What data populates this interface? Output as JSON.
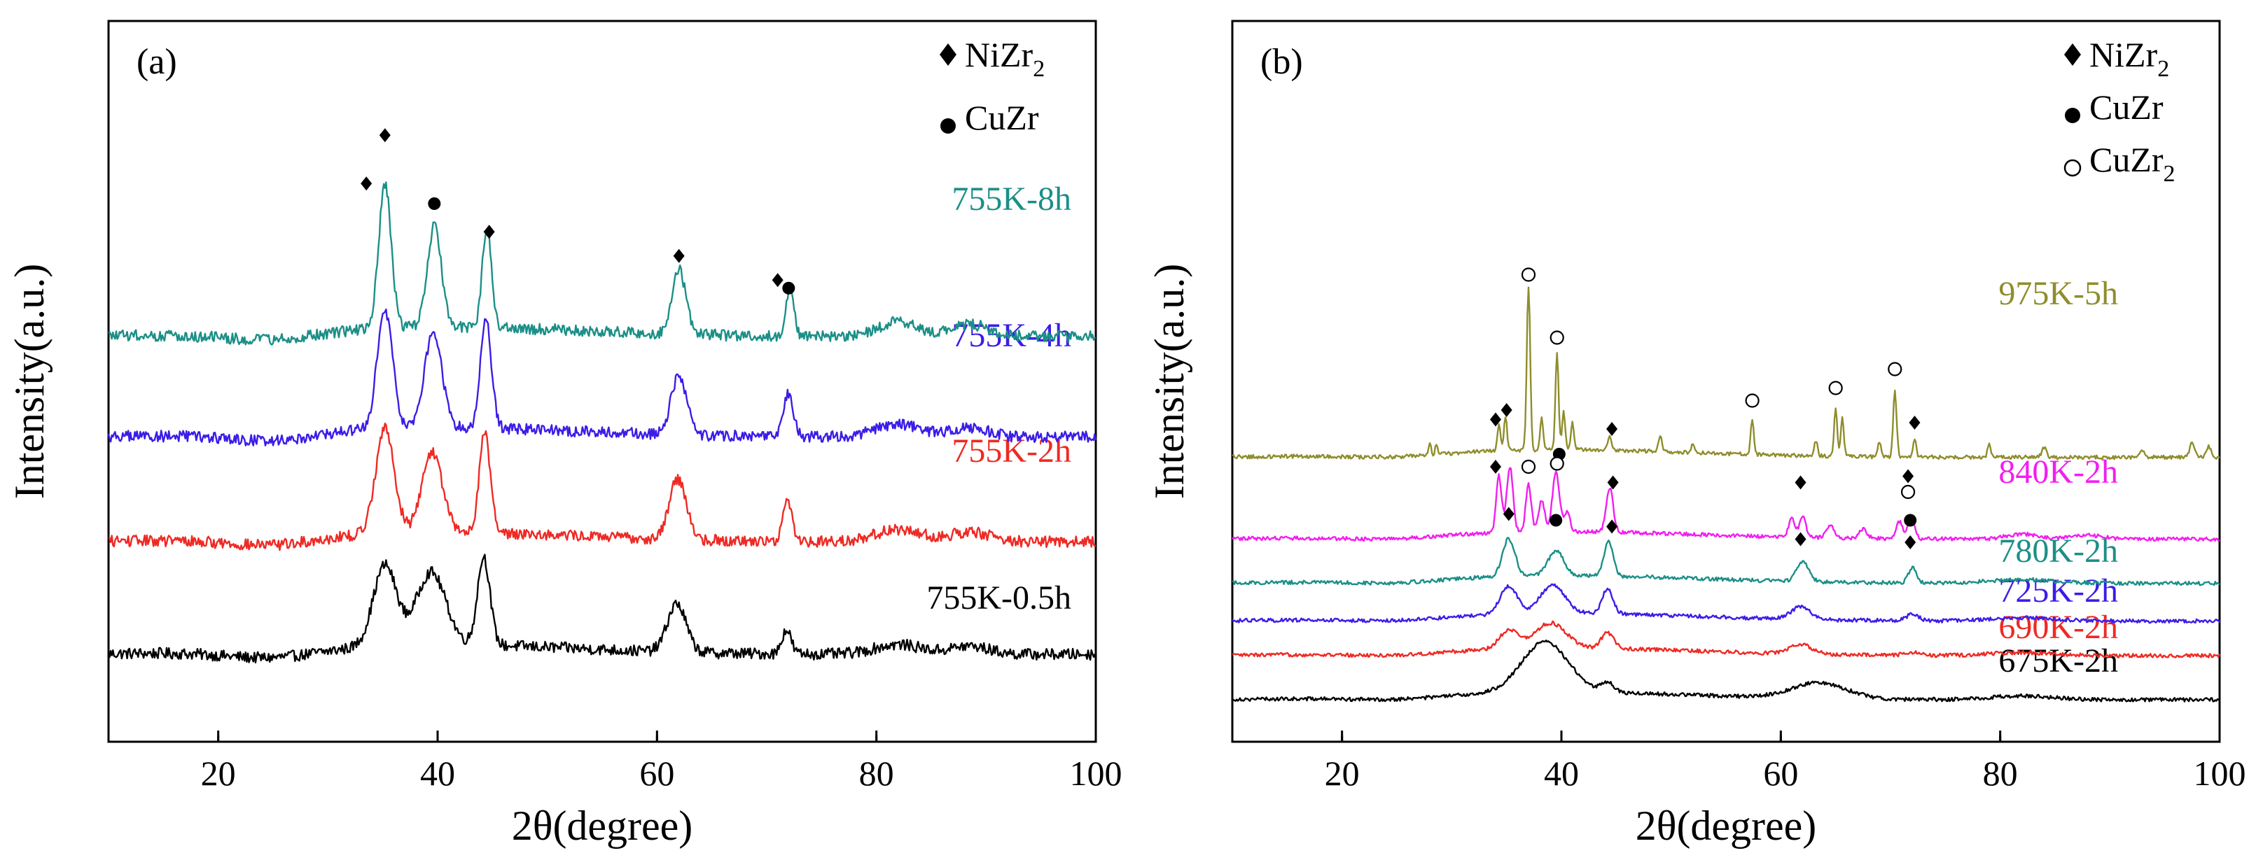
{
  "chart_data": [
    {
      "type": "line",
      "panel_label": "(a)",
      "xlabel": "2θ(degree)",
      "ylabel": "Intensity(a.u.)",
      "xlim": [
        10,
        100
      ],
      "xticks": [
        20,
        40,
        60,
        80,
        100
      ],
      "yticks": "none",
      "legend": {
        "placement": "top-right",
        "entries": [
          {
            "symbol": "filled-diamond",
            "label": "NiZr",
            "sub": "2"
          },
          {
            "symbol": "filled-circle",
            "label": "CuZr",
            "sub": ""
          }
        ]
      },
      "series": [
        {
          "name": "755K-0.5h",
          "color": "#000000",
          "offset": 0.0,
          "peaks": [
            [
              35.2,
              1.0,
              1.5
            ],
            [
              39.4,
              0.9,
              1.9
            ],
            [
              44.2,
              1.1,
              0.8
            ],
            [
              61.8,
              0.6,
              1.2
            ],
            [
              71.8,
              0.3,
              0.6
            ],
            [
              82,
              0.12,
              3
            ],
            [
              88.5,
              0.1,
              2.5
            ]
          ]
        },
        {
          "name": "755K-2h",
          "color": "#ee2a24",
          "offset": 1.4,
          "peaks": [
            [
              35.2,
              1.3,
              1.2
            ],
            [
              39.5,
              1.0,
              1.3
            ],
            [
              44.3,
              1.25,
              0.7
            ],
            [
              61.9,
              0.75,
              1.1
            ],
            [
              71.9,
              0.5,
              0.6
            ],
            [
              82,
              0.15,
              3
            ],
            [
              88.5,
              0.12,
              2.5
            ]
          ]
        },
        {
          "name": "755K-4h",
          "color": "#3b1de8",
          "offset": 2.7,
          "peaks": [
            [
              35.2,
              1.45,
              1.0
            ],
            [
              39.6,
              1.2,
              1.1
            ],
            [
              44.4,
              1.35,
              0.7
            ],
            [
              62.0,
              0.75,
              1.0
            ],
            [
              72.0,
              0.55,
              0.6
            ],
            [
              82,
              0.15,
              3
            ],
            [
              88.5,
              0.12,
              2.5
            ]
          ]
        },
        {
          "name": "755K-8h",
          "color": "#1b8f87",
          "offset": 3.95,
          "peaks": [
            [
              35.2,
              1.8,
              0.8
            ],
            [
              39.7,
              1.25,
              0.9
            ],
            [
              44.5,
              1.25,
              0.6
            ],
            [
              62.0,
              0.8,
              0.9
            ],
            [
              72.1,
              0.6,
              0.5
            ],
            [
              82,
              0.18,
              2.5
            ],
            [
              88.5,
              0.15,
              2.5
            ]
          ]
        }
      ],
      "markers": [
        {
          "symbol": "diamond",
          "x": 33.5,
          "y": 5.85
        },
        {
          "symbol": "diamond",
          "x": 35.2,
          "y": 6.45
        },
        {
          "symbol": "circle",
          "x": 39.7,
          "y": 5.6
        },
        {
          "symbol": "diamond",
          "x": 44.7,
          "y": 5.25
        },
        {
          "symbol": "diamond",
          "x": 62.0,
          "y": 4.95
        },
        {
          "symbol": "diamond",
          "x": 71.0,
          "y": 4.65
        },
        {
          "symbol": "circle",
          "x": 72.0,
          "y": 4.55
        }
      ]
    },
    {
      "type": "line",
      "panel_label": "(b)",
      "xlabel": "2θ(degree)",
      "ylabel": "Intensity(a.u.)",
      "xlim": [
        10,
        100
      ],
      "xticks": [
        20,
        40,
        60,
        80,
        100
      ],
      "yticks": "none",
      "legend": {
        "placement": "top-right",
        "entries": [
          {
            "symbol": "filled-diamond",
            "label": "NiZr",
            "sub": "2"
          },
          {
            "symbol": "filled-circle",
            "label": "CuZr",
            "sub": ""
          },
          {
            "symbol": "open-circle",
            "label": "CuZr",
            "sub": "2"
          }
        ]
      },
      "series": [
        {
          "name": "675K-2h",
          "color": "#000000",
          "offset": 0.0,
          "peaks": [
            [
              38.5,
              0.8,
              3.0
            ],
            [
              44.2,
              0.15,
              0.8
            ],
            [
              63.5,
              0.25,
              3.5
            ],
            [
              82,
              0.06,
              4
            ]
          ]
        },
        {
          "name": "690K-2h",
          "color": "#ee2a24",
          "offset": 0.7,
          "peaks": [
            [
              35.2,
              0.3,
              1.2
            ],
            [
              39.0,
              0.4,
              2.0
            ],
            [
              44.2,
              0.25,
              0.8
            ],
            [
              61.8,
              0.15,
              1.5
            ],
            [
              72,
              0.05,
              1
            ],
            [
              82,
              0.05,
              4
            ]
          ]
        },
        {
          "name": "725K-2h",
          "color": "#3b1de8",
          "offset": 1.25,
          "peaks": [
            [
              35.2,
              0.45,
              1.1
            ],
            [
              39.2,
              0.45,
              1.6
            ],
            [
              44.2,
              0.4,
              0.7
            ],
            [
              61.8,
              0.2,
              1.2
            ],
            [
              72,
              0.1,
              0.8
            ],
            [
              82,
              0.05,
              4
            ]
          ]
        },
        {
          "name": "780K-2h",
          "color": "#1b8f87",
          "offset": 1.85,
          "peaks": [
            [
              35.2,
              0.6,
              0.8
            ],
            [
              39.5,
              0.4,
              1.0
            ],
            [
              44.3,
              0.55,
              0.6
            ],
            [
              62.0,
              0.3,
              0.8
            ],
            [
              72.0,
              0.25,
              0.5
            ],
            [
              82,
              0.06,
              4
            ]
          ]
        },
        {
          "name": "840K-2h",
          "color": "#f21ef0",
          "offset": 2.55,
          "peaks": [
            [
              34.3,
              0.9,
              0.35
            ],
            [
              35.3,
              1.05,
              0.4
            ],
            [
              37.0,
              0.75,
              0.35
            ],
            [
              38.2,
              0.5,
              0.4
            ],
            [
              39.5,
              0.95,
              0.45
            ],
            [
              40.5,
              0.3,
              0.4
            ],
            [
              44.4,
              0.7,
              0.45
            ],
            [
              61.0,
              0.3,
              0.4
            ],
            [
              62.0,
              0.35,
              0.4
            ],
            [
              64.5,
              0.2,
              0.5
            ],
            [
              67.5,
              0.15,
              0.5
            ],
            [
              70.8,
              0.28,
              0.4
            ],
            [
              71.9,
              0.35,
              0.45
            ],
            [
              82,
              0.08,
              2
            ],
            [
              88,
              0.06,
              2
            ]
          ]
        },
        {
          "name": "975K-5h",
          "color": "#8e8d2c",
          "offset": 3.85,
          "peaks": [
            [
              28.0,
              0.2,
              0.15
            ],
            [
              28.6,
              0.15,
              0.15
            ],
            [
              34.3,
              0.4,
              0.2
            ],
            [
              34.9,
              0.55,
              0.2
            ],
            [
              37.0,
              2.6,
              0.22
            ],
            [
              38.2,
              0.5,
              0.2
            ],
            [
              39.6,
              1.55,
              0.2
            ],
            [
              40.2,
              0.6,
              0.2
            ],
            [
              41.0,
              0.45,
              0.2
            ],
            [
              44.4,
              0.2,
              0.25
            ],
            [
              49.0,
              0.25,
              0.2
            ],
            [
              52.0,
              0.15,
              0.2
            ],
            [
              57.4,
              0.55,
              0.2
            ],
            [
              63.2,
              0.25,
              0.2
            ],
            [
              65.0,
              0.75,
              0.2
            ],
            [
              65.6,
              0.6,
              0.2
            ],
            [
              69.0,
              0.25,
              0.2
            ],
            [
              70.4,
              1.05,
              0.22
            ],
            [
              72.2,
              0.3,
              0.2
            ],
            [
              79.0,
              0.22,
              0.2
            ],
            [
              84.0,
              0.15,
              0.3
            ],
            [
              93.0,
              0.12,
              0.3
            ],
            [
              97.5,
              0.25,
              0.3
            ],
            [
              99.0,
              0.18,
              0.3
            ]
          ]
        }
      ],
      "markers": [
        {
          "symbol": "open-circle",
          "x": 37.0,
          "y": 6.75
        },
        {
          "symbol": "open-circle",
          "x": 39.6,
          "y": 5.75
        },
        {
          "symbol": "open-circle",
          "x": 57.4,
          "y": 4.75
        },
        {
          "symbol": "open-circle",
          "x": 65.0,
          "y": 4.95
        },
        {
          "symbol": "open-circle",
          "x": 70.4,
          "y": 5.25
        },
        {
          "symbol": "diamond",
          "x": 35.0,
          "y": 4.6
        },
        {
          "symbol": "diamond",
          "x": 34.0,
          "y": 4.45
        },
        {
          "symbol": "diamond",
          "x": 44.6,
          "y": 4.3
        },
        {
          "symbol": "diamond",
          "x": 72.2,
          "y": 4.4
        },
        {
          "symbol": "diamond",
          "x": 34.0,
          "y": 3.7
        },
        {
          "symbol": "open-circle",
          "x": 37.0,
          "y": 3.7
        },
        {
          "symbol": "circle",
          "x": 39.8,
          "y": 3.9
        },
        {
          "symbol": "open-circle",
          "x": 39.6,
          "y": 3.75
        },
        {
          "symbol": "diamond",
          "x": 44.7,
          "y": 3.45
        },
        {
          "symbol": "diamond",
          "x": 61.8,
          "y": 3.45
        },
        {
          "symbol": "diamond",
          "x": 71.6,
          "y": 3.55
        },
        {
          "symbol": "open-circle",
          "x": 71.6,
          "y": 3.3
        },
        {
          "symbol": "diamond",
          "x": 35.2,
          "y": 2.95
        },
        {
          "symbol": "circle",
          "x": 39.5,
          "y": 2.85
        },
        {
          "symbol": "diamond",
          "x": 44.6,
          "y": 2.75
        },
        {
          "symbol": "diamond",
          "x": 61.8,
          "y": 2.55
        },
        {
          "symbol": "circle",
          "x": 71.8,
          "y": 2.85
        },
        {
          "symbol": "diamond",
          "x": 71.8,
          "y": 2.5
        }
      ]
    }
  ]
}
